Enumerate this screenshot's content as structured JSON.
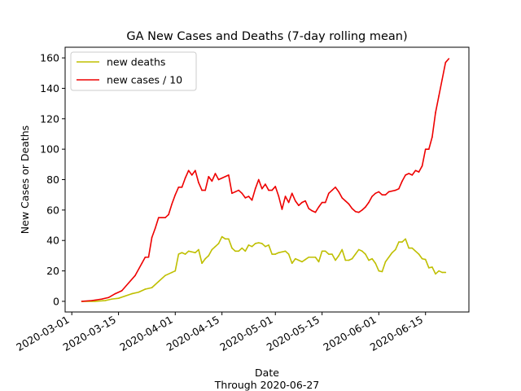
{
  "chart_data": {
    "type": "line",
    "title": "GA New Cases and Deaths (7-day rolling mean)",
    "xlabel": "Date",
    "xlabel_note": "Through 2020-06-27",
    "ylabel": "New Cases or Deaths",
    "xlim": [
      "2020-02-28",
      "2020-06-28"
    ],
    "ylim": [
      -7,
      167
    ],
    "yticks": [
      0,
      20,
      40,
      60,
      80,
      100,
      120,
      140,
      160
    ],
    "xticks": [
      "2020-03-01",
      "2020-03-15",
      "2020-04-01",
      "2020-04-15",
      "2020-05-01",
      "2020-05-15",
      "2020-06-01",
      "2020-06-15"
    ],
    "grid": false,
    "legend_position": "top-left",
    "series": [
      {
        "name": "new deaths",
        "color": "#bfbf00",
        "points": [
          [
            "2020-03-04",
            0
          ],
          [
            "2020-03-08",
            0
          ],
          [
            "2020-03-11",
            0.5
          ],
          [
            "2020-03-13",
            1.5
          ],
          [
            "2020-03-15",
            2
          ],
          [
            "2020-03-17",
            3.5
          ],
          [
            "2020-03-19",
            5
          ],
          [
            "2020-03-21",
            6
          ],
          [
            "2020-03-23",
            8
          ],
          [
            "2020-03-25",
            9
          ],
          [
            "2020-03-27",
            13
          ],
          [
            "2020-03-29",
            17
          ],
          [
            "2020-03-31",
            19
          ],
          [
            "2020-04-01",
            20
          ],
          [
            "2020-04-02",
            31
          ],
          [
            "2020-04-03",
            32
          ],
          [
            "2020-04-04",
            31
          ],
          [
            "2020-04-05",
            33
          ],
          [
            "2020-04-06",
            32.5
          ],
          [
            "2020-04-07",
            32
          ],
          [
            "2020-04-08",
            34
          ],
          [
            "2020-04-09",
            25
          ],
          [
            "2020-04-10",
            28
          ],
          [
            "2020-04-11",
            30
          ],
          [
            "2020-04-12",
            34
          ],
          [
            "2020-04-13",
            36
          ],
          [
            "2020-04-14",
            38
          ],
          [
            "2020-04-15",
            42.5
          ],
          [
            "2020-04-16",
            41
          ],
          [
            "2020-04-17",
            41
          ],
          [
            "2020-04-18",
            35
          ],
          [
            "2020-04-19",
            33
          ],
          [
            "2020-04-20",
            33
          ],
          [
            "2020-04-21",
            35
          ],
          [
            "2020-04-22",
            33
          ],
          [
            "2020-04-23",
            37
          ],
          [
            "2020-04-24",
            36
          ],
          [
            "2020-04-25",
            38
          ],
          [
            "2020-04-26",
            38.5
          ],
          [
            "2020-04-27",
            38
          ],
          [
            "2020-04-28",
            36
          ],
          [
            "2020-04-29",
            37
          ],
          [
            "2020-04-30",
            31
          ],
          [
            "2020-05-01",
            31
          ],
          [
            "2020-05-02",
            32
          ],
          [
            "2020-05-03",
            32.5
          ],
          [
            "2020-05-04",
            33
          ],
          [
            "2020-05-05",
            31
          ],
          [
            "2020-05-06",
            25
          ],
          [
            "2020-05-07",
            28
          ],
          [
            "2020-05-08",
            27
          ],
          [
            "2020-05-09",
            26
          ],
          [
            "2020-05-10",
            27.5
          ],
          [
            "2020-05-11",
            29
          ],
          [
            "2020-05-12",
            29
          ],
          [
            "2020-05-13",
            29
          ],
          [
            "2020-05-14",
            26
          ],
          [
            "2020-05-15",
            33
          ],
          [
            "2020-05-16",
            33
          ],
          [
            "2020-05-17",
            31
          ],
          [
            "2020-05-18",
            31
          ],
          [
            "2020-05-19",
            27
          ],
          [
            "2020-05-20",
            30
          ],
          [
            "2020-05-21",
            34
          ],
          [
            "2020-05-22",
            27
          ],
          [
            "2020-05-23",
            27
          ],
          [
            "2020-05-24",
            28
          ],
          [
            "2020-05-25",
            31
          ],
          [
            "2020-05-26",
            34
          ],
          [
            "2020-05-27",
            33
          ],
          [
            "2020-05-28",
            31
          ],
          [
            "2020-05-29",
            27
          ],
          [
            "2020-05-30",
            28
          ],
          [
            "2020-05-31",
            25
          ],
          [
            "2020-06-01",
            20
          ],
          [
            "2020-06-02",
            19.5
          ],
          [
            "2020-06-03",
            26
          ],
          [
            "2020-06-04",
            29
          ],
          [
            "2020-06-05",
            32
          ],
          [
            "2020-06-06",
            34
          ],
          [
            "2020-06-07",
            39
          ],
          [
            "2020-06-08",
            39
          ],
          [
            "2020-06-09",
            41
          ],
          [
            "2020-06-10",
            35
          ],
          [
            "2020-06-11",
            35
          ],
          [
            "2020-06-12",
            33
          ],
          [
            "2020-06-13",
            31
          ],
          [
            "2020-06-14",
            28
          ],
          [
            "2020-06-15",
            27.5
          ],
          [
            "2020-06-16",
            22
          ],
          [
            "2020-06-17",
            22.5
          ],
          [
            "2020-06-18",
            18
          ],
          [
            "2020-06-19",
            20
          ],
          [
            "2020-06-20",
            19
          ],
          [
            "2020-06-21",
            19
          ]
        ]
      },
      {
        "name": "new cases / 10",
        "color": "#ee0000",
        "points": [
          [
            "2020-03-04",
            0
          ],
          [
            "2020-03-07",
            0.5
          ],
          [
            "2020-03-10",
            1.5
          ],
          [
            "2020-03-12",
            2.5
          ],
          [
            "2020-03-14",
            5
          ],
          [
            "2020-03-16",
            7
          ],
          [
            "2020-03-18",
            12
          ],
          [
            "2020-03-20",
            17
          ],
          [
            "2020-03-22",
            25
          ],
          [
            "2020-03-23",
            29
          ],
          [
            "2020-03-24",
            29
          ],
          [
            "2020-03-25",
            42
          ],
          [
            "2020-03-26",
            48
          ],
          [
            "2020-03-27",
            55
          ],
          [
            "2020-03-28",
            55
          ],
          [
            "2020-03-29",
            55
          ],
          [
            "2020-03-30",
            57
          ],
          [
            "2020-03-31",
            64
          ],
          [
            "2020-04-01",
            70
          ],
          [
            "2020-04-02",
            75
          ],
          [
            "2020-04-03",
            75
          ],
          [
            "2020-04-04",
            81
          ],
          [
            "2020-04-05",
            86
          ],
          [
            "2020-04-06",
            83
          ],
          [
            "2020-04-07",
            86
          ],
          [
            "2020-04-08",
            78
          ],
          [
            "2020-04-09",
            73
          ],
          [
            "2020-04-10",
            73
          ],
          [
            "2020-04-11",
            82
          ],
          [
            "2020-04-12",
            79
          ],
          [
            "2020-04-13",
            84
          ],
          [
            "2020-04-14",
            80
          ],
          [
            "2020-04-15",
            81
          ],
          [
            "2020-04-16",
            82
          ],
          [
            "2020-04-17",
            83
          ],
          [
            "2020-04-18",
            71
          ],
          [
            "2020-04-19",
            72
          ],
          [
            "2020-04-20",
            73
          ],
          [
            "2020-04-21",
            71
          ],
          [
            "2020-04-22",
            68
          ],
          [
            "2020-04-23",
            69
          ],
          [
            "2020-04-24",
            66.5
          ],
          [
            "2020-04-25",
            74
          ],
          [
            "2020-04-26",
            80
          ],
          [
            "2020-04-27",
            74
          ],
          [
            "2020-04-28",
            77
          ],
          [
            "2020-04-29",
            73
          ],
          [
            "2020-04-30",
            73
          ],
          [
            "2020-05-01",
            75.5
          ],
          [
            "2020-05-02",
            69
          ],
          [
            "2020-05-03",
            60.5
          ],
          [
            "2020-05-04",
            69
          ],
          [
            "2020-05-05",
            65
          ],
          [
            "2020-05-06",
            71
          ],
          [
            "2020-05-07",
            66
          ],
          [
            "2020-05-08",
            63
          ],
          [
            "2020-05-09",
            65
          ],
          [
            "2020-05-10",
            66
          ],
          [
            "2020-05-11",
            61
          ],
          [
            "2020-05-12",
            59.5
          ],
          [
            "2020-05-13",
            58.5
          ],
          [
            "2020-05-14",
            62
          ],
          [
            "2020-05-15",
            65
          ],
          [
            "2020-05-16",
            65
          ],
          [
            "2020-05-17",
            71
          ],
          [
            "2020-05-18",
            73
          ],
          [
            "2020-05-19",
            75
          ],
          [
            "2020-05-20",
            72
          ],
          [
            "2020-05-21",
            68
          ],
          [
            "2020-05-22",
            66
          ],
          [
            "2020-05-23",
            64
          ],
          [
            "2020-05-24",
            61
          ],
          [
            "2020-05-25",
            59
          ],
          [
            "2020-05-26",
            58.5
          ],
          [
            "2020-05-27",
            60
          ],
          [
            "2020-05-28",
            62
          ],
          [
            "2020-05-29",
            65
          ],
          [
            "2020-05-30",
            69
          ],
          [
            "2020-05-31",
            71
          ],
          [
            "2020-06-01",
            72
          ],
          [
            "2020-06-02",
            70
          ],
          [
            "2020-06-03",
            70
          ],
          [
            "2020-06-04",
            72
          ],
          [
            "2020-06-05",
            72.5
          ],
          [
            "2020-06-06",
            73
          ],
          [
            "2020-06-07",
            74
          ],
          [
            "2020-06-08",
            79
          ],
          [
            "2020-06-09",
            83
          ],
          [
            "2020-06-10",
            84
          ],
          [
            "2020-06-11",
            83
          ],
          [
            "2020-06-12",
            86
          ],
          [
            "2020-06-13",
            85
          ],
          [
            "2020-06-14",
            89
          ],
          [
            "2020-06-15",
            100
          ],
          [
            "2020-06-16",
            100
          ],
          [
            "2020-06-17",
            108
          ],
          [
            "2020-06-18",
            124
          ],
          [
            "2020-06-19",
            135
          ],
          [
            "2020-06-20",
            146
          ],
          [
            "2020-06-21",
            157
          ],
          [
            "2020-06-22",
            159.5
          ]
        ]
      }
    ]
  }
}
